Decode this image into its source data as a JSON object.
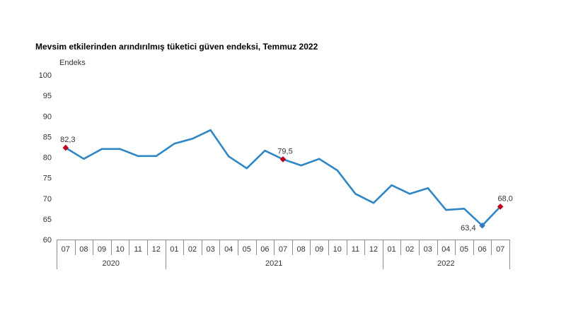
{
  "chart_data": {
    "type": "line",
    "title": "Mevsim etkilerinden arındırılmış tüketici güven endeksi, Temmuz 2022",
    "xlabel": "",
    "ylabel": "Endeks",
    "ylim": [
      60,
      100
    ],
    "yticks": [
      100,
      95,
      90,
      85,
      80,
      75,
      70,
      65,
      60
    ],
    "grid": false,
    "groups": [
      {
        "label": "2020",
        "months": [
          "07",
          "08",
          "09",
          "10",
          "11",
          "12"
        ]
      },
      {
        "label": "2021",
        "months": [
          "01",
          "02",
          "03",
          "04",
          "05",
          "06",
          "07",
          "08",
          "09",
          "10",
          "11",
          "12"
        ]
      },
      {
        "label": "2022",
        "months": [
          "01",
          "02",
          "03",
          "04",
          "05",
          "06",
          "07"
        ]
      }
    ],
    "series": [
      {
        "color": "#2f86c6",
        "values": [
          82.3,
          79.6,
          82.0,
          82.0,
          80.3,
          80.3,
          83.3,
          84.5,
          86.6,
          80.2,
          77.3,
          81.6,
          79.5,
          78.0,
          79.6,
          76.8,
          71.1,
          68.9,
          73.2,
          71.1,
          72.5,
          67.2,
          67.5,
          63.4,
          68.0
        ]
      }
    ],
    "highlights": [
      {
        "index": 0,
        "label": "82,3",
        "marker": "diamond",
        "color": "#c0001a",
        "placement": "above"
      },
      {
        "index": 12,
        "label": "79,5",
        "marker": "diamond",
        "color": "#c0001a",
        "placement": "above"
      },
      {
        "index": 23,
        "label": "63,4",
        "marker": "diamond",
        "color": "#2f7cbf",
        "placement": "left"
      },
      {
        "index": 24,
        "label": "68,0",
        "marker": "diamond",
        "color": "#c0001a",
        "placement": "above-right"
      }
    ]
  }
}
